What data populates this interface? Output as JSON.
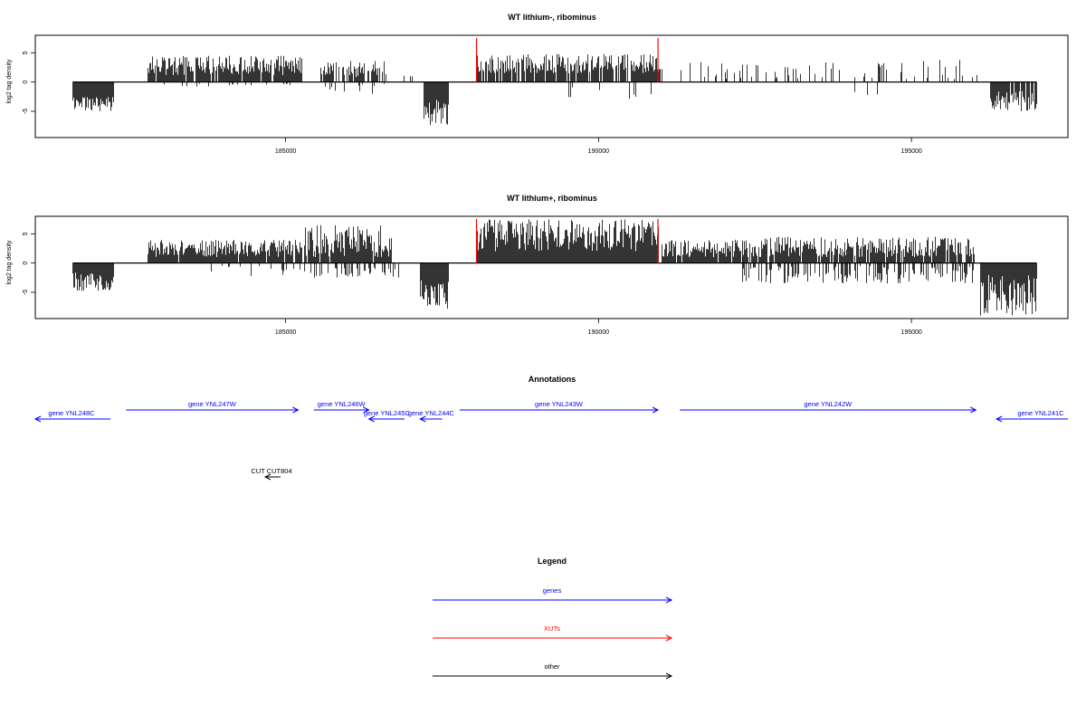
{
  "chart_data": [
    {
      "type": "bar",
      "title": "WT lithium-, ribominus",
      "xlabel": "",
      "ylabel": "log2 tag density",
      "xlim": [
        181000,
        197500
      ],
      "ylim": [
        -9.5,
        8
      ],
      "xticks": [
        185000,
        190000,
        195000
      ],
      "xtick_labels": [
        "185000",
        "190000",
        "195000"
      ],
      "yticks": [
        -5,
        0,
        5
      ],
      "ytick_labels": [
        "-5",
        "0",
        "5"
      ],
      "marker_lines": [
        188050,
        190950
      ],
      "marker_color": "#ff0000",
      "bar_color": "#000000",
      "segments": [
        {
          "start": 181600,
          "end": 182250,
          "sign": -1,
          "min": 2.5,
          "max": 5,
          "density": 1.0,
          "seed": 11
        },
        {
          "start": 182800,
          "end": 185250,
          "sign": 1,
          "min": 1.2,
          "max": 4.5,
          "density": 0.95,
          "seed": 12
        },
        {
          "start": 183000,
          "end": 185300,
          "sign": -1,
          "min": 0.2,
          "max": 0.8,
          "density": 0.08,
          "seed": 13
        },
        {
          "start": 185550,
          "end": 186600,
          "sign": 1,
          "min": 0.8,
          "max": 3.8,
          "density": 0.55,
          "seed": 14
        },
        {
          "start": 185600,
          "end": 186600,
          "sign": -1,
          "min": 0.3,
          "max": 2.5,
          "density": 0.15,
          "seed": 15
        },
        {
          "start": 187200,
          "end": 187600,
          "sign": -1,
          "min": 3,
          "max": 7.5,
          "density": 1.0,
          "seed": 16
        },
        {
          "start": 186700,
          "end": 187100,
          "sign": 1,
          "min": 0.2,
          "max": 1.2,
          "density": 0.15,
          "seed": 17
        },
        {
          "start": 188050,
          "end": 191000,
          "sign": 1,
          "min": 1.5,
          "max": 4.8,
          "density": 0.85,
          "seed": 18
        },
        {
          "start": 189500,
          "end": 191000,
          "sign": -1,
          "min": 0.5,
          "max": 3,
          "density": 0.05,
          "seed": 19
        },
        {
          "start": 191300,
          "end": 194300,
          "sign": 1,
          "min": 0.5,
          "max": 3.5,
          "density": 0.22,
          "seed": 20
        },
        {
          "start": 193800,
          "end": 194600,
          "sign": -1,
          "min": 1,
          "max": 3,
          "density": 0.08,
          "seed": 21
        },
        {
          "start": 194300,
          "end": 196050,
          "sign": 1,
          "min": 0.5,
          "max": 3.8,
          "density": 0.18,
          "seed": 22
        },
        {
          "start": 196250,
          "end": 197000,
          "sign": -1,
          "min": 1.5,
          "max": 5,
          "density": 0.9,
          "seed": 23
        }
      ]
    },
    {
      "type": "bar",
      "title": "WT lithium+, ribominus",
      "xlabel": "",
      "ylabel": "log2 tag density",
      "xlim": [
        181000,
        197500
      ],
      "ylim": [
        -9.5,
        8
      ],
      "xticks": [
        185000,
        190000,
        195000
      ],
      "xtick_labels": [
        "185000",
        "190000",
        "195000"
      ],
      "yticks": [
        -5,
        0,
        5
      ],
      "ytick_labels": [
        "-5",
        "0",
        "5"
      ],
      "marker_lines": [
        188050,
        190950
      ],
      "marker_color": "#ff0000",
      "bar_color": "#000000",
      "segments": [
        {
          "start": 181600,
          "end": 182250,
          "sign": -1,
          "min": 1.5,
          "max": 4.8,
          "density": 1.0,
          "seed": 31
        },
        {
          "start": 182800,
          "end": 185250,
          "sign": 1,
          "min": 1,
          "max": 4,
          "density": 0.95,
          "seed": 32
        },
        {
          "start": 183500,
          "end": 185300,
          "sign": -1,
          "min": 0.3,
          "max": 2.5,
          "density": 0.12,
          "seed": 33
        },
        {
          "start": 185300,
          "end": 186700,
          "sign": 1,
          "min": 1,
          "max": 6.5,
          "density": 0.95,
          "seed": 34
        },
        {
          "start": 185300,
          "end": 186800,
          "sign": -1,
          "min": 0.5,
          "max": 2.5,
          "density": 0.4,
          "seed": 35
        },
        {
          "start": 187150,
          "end": 187600,
          "sign": -1,
          "min": 3,
          "max": 8,
          "density": 1.0,
          "seed": 36
        },
        {
          "start": 188050,
          "end": 190950,
          "sign": 1,
          "min": 2,
          "max": 7.5,
          "density": 1.0,
          "seed": 37
        },
        {
          "start": 191000,
          "end": 192300,
          "sign": 1,
          "min": 1,
          "max": 4,
          "density": 0.9,
          "seed": 38
        },
        {
          "start": 192300,
          "end": 196000,
          "sign": 1,
          "min": 1,
          "max": 4.5,
          "density": 0.9,
          "seed": 39
        },
        {
          "start": 192300,
          "end": 196000,
          "sign": -1,
          "min": 0.5,
          "max": 3.5,
          "density": 0.45,
          "seed": 40
        },
        {
          "start": 196100,
          "end": 197000,
          "sign": -1,
          "min": 2,
          "max": 9,
          "density": 1.0,
          "seed": 41
        }
      ]
    }
  ],
  "annotations": {
    "title": "Annotations",
    "features": [
      {
        "label": "gene YNL248C",
        "start": 181000,
        "end": 182200,
        "strand": "-",
        "color": "#0000ff",
        "row": 1
      },
      {
        "label": "gene YNL247W",
        "start": 182450,
        "end": 185200,
        "strand": "+",
        "color": "#0000ff",
        "row": 0
      },
      {
        "label": "gene YNL246W",
        "start": 185450,
        "end": 186330,
        "strand": "+",
        "color": "#0000ff",
        "row": 0
      },
      {
        "label": "gene YNL245C",
        "start": 186330,
        "end": 186900,
        "strand": "-",
        "color": "#0000ff",
        "row": 1
      },
      {
        "label": "gene YNL244C",
        "start": 187150,
        "end": 187500,
        "strand": "-",
        "color": "#0000ff",
        "row": 1
      },
      {
        "label": "gene YNL243W",
        "start": 187780,
        "end": 190950,
        "strand": "+",
        "color": "#0000ff",
        "row": 0
      },
      {
        "label": "gene YNL242W",
        "start": 191300,
        "end": 196030,
        "strand": "+",
        "color": "#0000ff",
        "row": 0
      },
      {
        "label": "gene YNL241C",
        "start": 196360,
        "end": 197500,
        "strand": "-",
        "color": "#0000ff",
        "row": 1
      },
      {
        "label": "CUT CUT804",
        "start": 185000,
        "end": 185250,
        "strand": "-",
        "color": "#000000",
        "row": 2
      }
    ]
  },
  "legend": {
    "title": "Legend",
    "items": [
      {
        "label": "genes",
        "color": "#0000ff"
      },
      {
        "label": "XUTs",
        "color": "#ff0000"
      },
      {
        "label": "other",
        "color": "#000000"
      }
    ]
  }
}
